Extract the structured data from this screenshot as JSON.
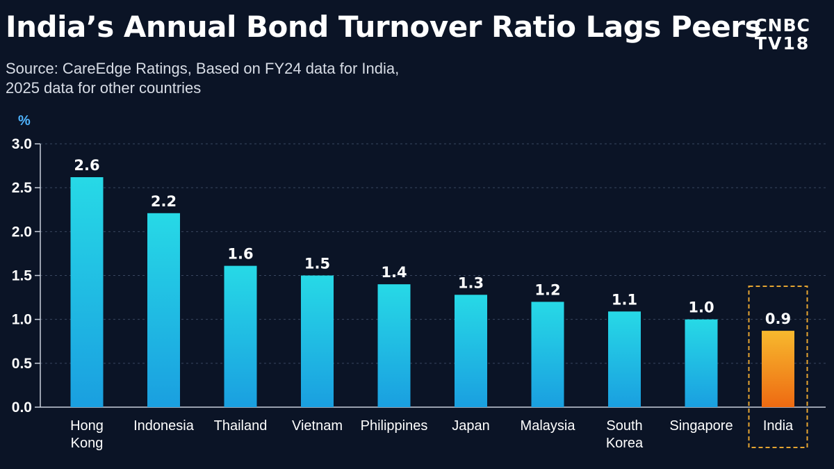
{
  "header": {
    "title": "India’s Annual Bond Turnover Ratio Lags Peers",
    "subtitle_line1": "Source: CareEdge Ratings, Based on FY24 data for India,",
    "subtitle_line2": "2025 data for other countries"
  },
  "logo": {
    "line1": "CNBC",
    "line2": "TV18"
  },
  "colors": {
    "background": "#0b1426",
    "bar_top": "#27d9e6",
    "bar_bottom": "#1a9fe0",
    "highlight_top": "#f7b92e",
    "highlight_bottom": "#ee6a12",
    "highlight_box": "#e6a531",
    "unit": "#4fb4ff"
  },
  "chart_data": {
    "type": "bar",
    "unit": "%",
    "categories": [
      "Hong Kong",
      "Indonesia",
      "Thailand",
      "Vietnam",
      "Philippines",
      "Japan",
      "Malaysia",
      "South Korea",
      "Singapore",
      "India"
    ],
    "category_lines": [
      [
        "Hong",
        "Kong"
      ],
      [
        "Indonesia"
      ],
      [
        "Thailand"
      ],
      [
        "Vietnam"
      ],
      [
        "Philippines"
      ],
      [
        "Japan"
      ],
      [
        "Malaysia"
      ],
      [
        "South",
        "Korea"
      ],
      [
        "Singapore"
      ],
      [
        "India"
      ]
    ],
    "values": [
      2.62,
      2.21,
      1.61,
      1.5,
      1.4,
      1.28,
      1.2,
      1.09,
      1.0,
      0.87
    ],
    "value_labels": [
      "2.6",
      "2.2",
      "1.6",
      "1.5",
      "1.4",
      "1.3",
      "1.2",
      "1.1",
      "1.0",
      "0.9"
    ],
    "ylim": [
      0,
      3.0
    ],
    "yticks": [
      "0.0",
      "0.5",
      "1.0",
      "1.5",
      "2.0",
      "2.5",
      "3.0"
    ],
    "grid": true,
    "highlight_category": "India"
  }
}
